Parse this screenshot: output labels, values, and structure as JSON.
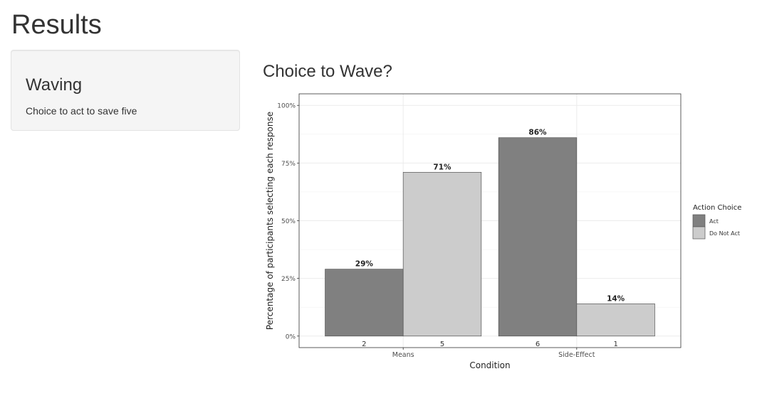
{
  "page": {
    "title": "Results"
  },
  "sidebar": {
    "title": "Waving",
    "description": "Choice to act to save five"
  },
  "chart_data": {
    "type": "bar",
    "title": "Choice to Wave?",
    "xlabel": "Condition",
    "ylabel": "Percentage of participants selecting each response",
    "categories": [
      "Means",
      "Side-Effect"
    ],
    "series": [
      {
        "name": "Act",
        "values": [
          29,
          86
        ],
        "counts": [
          "2",
          "6"
        ],
        "labels": [
          "29%",
          "86%"
        ],
        "color": "#808080"
      },
      {
        "name": "Do Not Act",
        "values": [
          71,
          14
        ],
        "counts": [
          "5",
          "1"
        ],
        "labels": [
          "71%",
          "14%"
        ],
        "color": "#cccccc"
      }
    ],
    "ylim": [
      0,
      100
    ],
    "yticks": [
      0,
      25,
      50,
      75,
      100
    ],
    "ytick_labels": [
      "0%",
      "25%",
      "50%",
      "75%",
      "100%"
    ],
    "legend": {
      "title": "Action Choice",
      "placement": "right"
    },
    "grid": true
  }
}
